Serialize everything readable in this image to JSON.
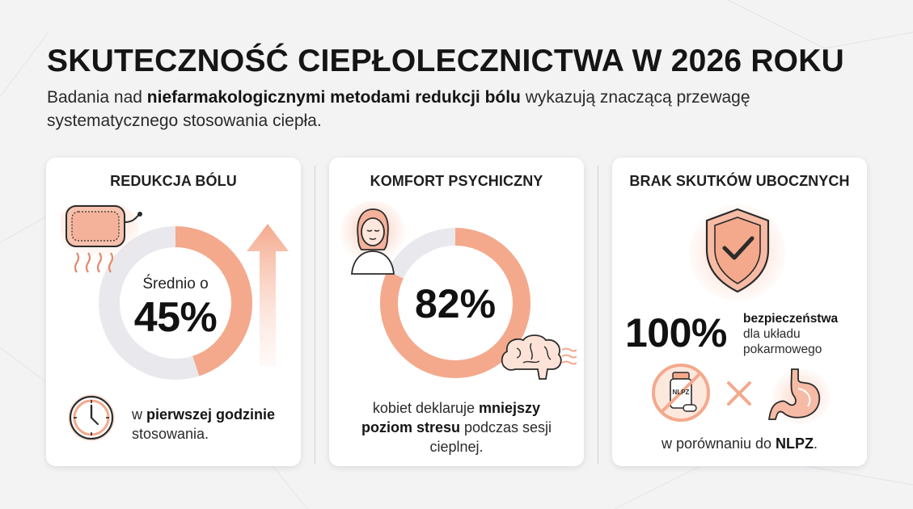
{
  "header": {
    "title": "SKUTECZNOŚĆ CIEPŁOLECZNICTWA W 2026 ROKU",
    "subtitle_pre": "Badania nad ",
    "subtitle_bold": "niefarmakologicznymi metodami redukcji bólu",
    "subtitle_post": " wykazują znaczącą przewagę systematycznego stosowania ciepła."
  },
  "cards": [
    {
      "title": "REDUKCJA BÓLU",
      "sub": "Średnio o",
      "value": "45%",
      "progress_percent": 45,
      "caption_pre": "w ",
      "caption_bold": "pierwszej godzinie",
      "caption_post": "stosowania.",
      "icons": [
        "heat-pad-icon",
        "clock-icon",
        "up-arrow-icon"
      ]
    },
    {
      "title": "KOMFORT PSYCHICZNY",
      "value": "82%",
      "progress_percent": 82,
      "caption_pre": "kobiet deklaruje ",
      "caption_bold1": "mniejszy",
      "caption_bold2": "poziom stresu",
      "caption_post": " podczas sesji cieplnej.",
      "icons": [
        "woman-face-icon",
        "brain-icon"
      ]
    },
    {
      "title": "BRAK SKUTKÓW UBOCZNYCH",
      "value": "100%",
      "note_bold": "bezpieczeństwa",
      "note_line2": "dla układu",
      "note_line3": "pokarmowego",
      "pill_label": "NLPZ",
      "caption_pre": "w porównaniu do ",
      "caption_bold": "NLPZ",
      "caption_post": ".",
      "icons": [
        "shield-check-icon",
        "no-pills-icon",
        "times-icon",
        "stomach-icon"
      ]
    }
  ],
  "colors": {
    "accent": "#f4a98c",
    "accent_dark": "#e48a6c",
    "accent_light": "#fbd9cb",
    "track": "#e8e8ec",
    "background": "#f3f3f4"
  }
}
